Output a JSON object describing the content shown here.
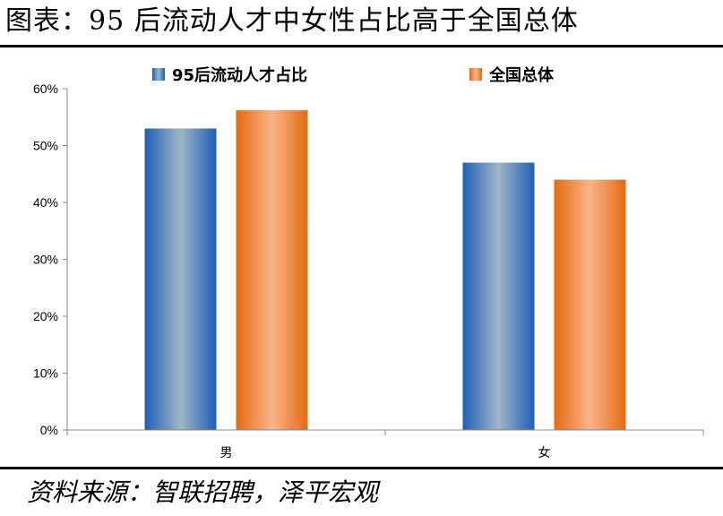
{
  "title": "图表：95 后流动人才中女性占比高于全国总体",
  "source": "资料来源：智联招聘，泽平宏观",
  "chart_data": {
    "type": "bar",
    "categories": [
      "男",
      "女"
    ],
    "series": [
      {
        "name": "95后流动人才占比",
        "values": [
          0.53,
          0.47
        ],
        "color": "#3a7ec6"
      },
      {
        "name": "全国总体",
        "values": [
          0.562,
          0.44
        ],
        "color": "#ee8a3c"
      }
    ],
    "ylim": [
      0,
      0.6
    ],
    "yticks": [
      0,
      0.1,
      0.2,
      0.3,
      0.4,
      0.5,
      0.6
    ],
    "ytick_labels": [
      "0%",
      "10%",
      "20%",
      "30%",
      "40%",
      "50%",
      "60%"
    ],
    "legend": "top",
    "grid": false
  }
}
